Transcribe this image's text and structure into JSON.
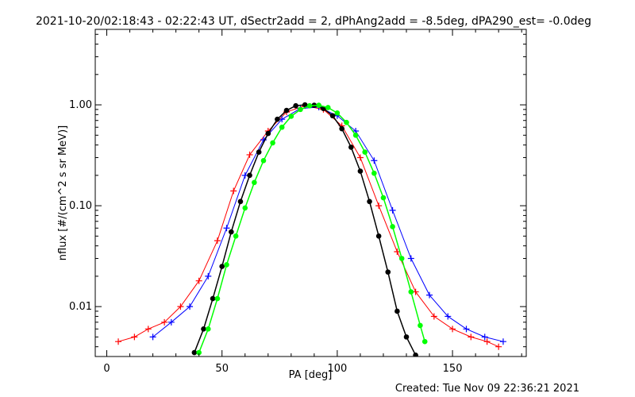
{
  "chart_data": {
    "type": "line",
    "title": "2021-10-20/02:18:43 - 02:22:43 UT, dSectr2add = 2, dPhAng2add = -8.5deg, dPA290_est= -0.0deg",
    "xlabel": "PA [deg]",
    "ylabel": "nflux [#/(cm^2 s sr MeV)]",
    "xlim": [
      -5,
      182
    ],
    "ylim": [
      0.0032,
      5.6
    ],
    "yscale": "log",
    "x_ticks": [
      0,
      50,
      100,
      150
    ],
    "x_tick_labels": [
      "0",
      "50",
      "100",
      "150"
    ],
    "y_ticks": [
      0.01,
      0.1,
      1.0
    ],
    "y_tick_labels": [
      "0.01",
      "0.10",
      "1.00"
    ],
    "grid": false,
    "footer": "Created: Tue Nov 09 22:36:21 2021",
    "colors": {
      "red_traces": "#ff0000",
      "blue_traces": "#0000ff",
      "black_fit": "#000000",
      "green_fit": "#00ff00"
    },
    "series": [
      {
        "color": "red",
        "marker": "plus",
        "x": [
          5,
          12,
          18,
          25,
          32,
          40,
          48,
          55,
          62,
          70,
          78,
          86,
          94,
          102,
          110,
          118,
          126,
          134,
          142,
          150,
          158,
          165,
          170
        ],
        "y": [
          0.0045,
          0.005,
          0.006,
          0.007,
          0.01,
          0.018,
          0.045,
          0.14,
          0.32,
          0.55,
          0.85,
          0.98,
          0.9,
          0.62,
          0.3,
          0.1,
          0.035,
          0.014,
          0.008,
          0.006,
          0.005,
          0.0045,
          0.004
        ]
      },
      {
        "color": "blue",
        "marker": "plus",
        "x": [
          20,
          28,
          36,
          44,
          52,
          60,
          68,
          76,
          84,
          92,
          100,
          108,
          116,
          124,
          132,
          140,
          148,
          156,
          164,
          172
        ],
        "y": [
          0.005,
          0.007,
          0.01,
          0.02,
          0.06,
          0.2,
          0.45,
          0.72,
          0.92,
          0.95,
          0.78,
          0.55,
          0.28,
          0.09,
          0.03,
          0.013,
          0.008,
          0.006,
          0.005,
          0.0045
        ]
      },
      {
        "color": "black",
        "marker": "filled-circle",
        "x": [
          38,
          42,
          46,
          50,
          54,
          58,
          62,
          66,
          70,
          74,
          78,
          82,
          86,
          90,
          94,
          98,
          102,
          106,
          110,
          114,
          118,
          122,
          126,
          130,
          134
        ],
        "y": [
          0.0035,
          0.006,
          0.012,
          0.025,
          0.055,
          0.11,
          0.2,
          0.34,
          0.52,
          0.72,
          0.88,
          0.98,
          1.0,
          0.99,
          0.92,
          0.78,
          0.58,
          0.38,
          0.22,
          0.11,
          0.05,
          0.022,
          0.009,
          0.005,
          0.0033
        ]
      },
      {
        "color": "green",
        "marker": "filled-circle",
        "x": [
          40,
          44,
          48,
          52,
          56,
          60,
          64,
          68,
          72,
          76,
          80,
          84,
          88,
          92,
          96,
          100,
          104,
          108,
          112,
          116,
          120,
          124,
          128,
          132,
          136,
          138
        ],
        "y": [
          0.0035,
          0.006,
          0.012,
          0.026,
          0.05,
          0.095,
          0.17,
          0.28,
          0.42,
          0.6,
          0.77,
          0.9,
          0.98,
          0.99,
          0.94,
          0.83,
          0.67,
          0.5,
          0.34,
          0.21,
          0.12,
          0.062,
          0.03,
          0.014,
          0.0065,
          0.0045
        ]
      }
    ]
  }
}
